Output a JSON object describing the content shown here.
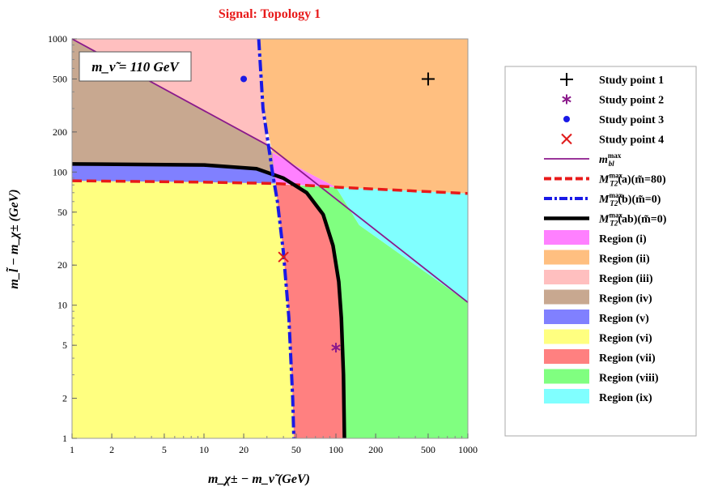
{
  "chart_data": {
    "type": "area",
    "title": "Signal: Topology 1",
    "xlabel": "m_χ± − m_ν̃ (GeV)",
    "ylabel": "m_l̃ − m_χ± (GeV)",
    "xscale": "log",
    "yscale": "log",
    "xlim": [
      1,
      1000
    ],
    "ylim": [
      1,
      1000
    ],
    "x_ticks": [
      1,
      2,
      5,
      10,
      20,
      50,
      100,
      200,
      500,
      1000
    ],
    "y_ticks": [
      1,
      2,
      5,
      10,
      20,
      50,
      100,
      200,
      500,
      1000
    ],
    "annotation": "m_ν̃ = 110 GeV",
    "grid": false,
    "legend_position": "right, outside plot",
    "curves": {
      "mbl_max": [
        [
          1,
          1000
        ],
        [
          30,
          160
        ],
        [
          1000,
          10.5
        ]
      ],
      "MT2a": [
        [
          1,
          86
        ],
        [
          10,
          84
        ],
        [
          35,
          82
        ],
        [
          100,
          77
        ],
        [
          300,
          73
        ],
        [
          1000,
          69
        ]
      ],
      "MT2b": [
        [
          26,
          1000
        ],
        [
          28,
          300
        ],
        [
          33,
          100
        ],
        [
          36,
          60
        ],
        [
          40,
          25
        ],
        [
          44,
          8
        ],
        [
          47,
          2
        ],
        [
          48,
          1
        ]
      ],
      "MT2ab": [
        [
          1,
          115
        ],
        [
          10,
          113
        ],
        [
          25,
          106
        ],
        [
          40,
          90
        ],
        [
          60,
          70
        ],
        [
          80,
          48
        ],
        [
          95,
          28
        ],
        [
          105,
          15
        ],
        [
          110,
          8
        ],
        [
          114,
          3
        ],
        [
          116,
          1
        ]
      ]
    },
    "study_points": [
      {
        "name": "Study point 1",
        "x": 500,
        "y": 500,
        "marker": "plus",
        "color": "#000000"
      },
      {
        "name": "Study point 2",
        "x": 100,
        "y": 4.8,
        "marker": "asterisk",
        "color": "#8B1A8B"
      },
      {
        "name": "Study point 3",
        "x": 20,
        "y": 500,
        "marker": "dot",
        "color": "#1A1AE6"
      },
      {
        "name": "Study point 4",
        "x": 40,
        "y": 23,
        "marker": "cross",
        "color": "#E01A1A"
      }
    ],
    "regions": [
      {
        "name": "Region (i)",
        "color": "#FF80FF"
      },
      {
        "name": "Region (ii)",
        "color": "#FFBF80"
      },
      {
        "name": "Region (iii)",
        "color": "#FFBFBF"
      },
      {
        "name": "Region (iv)",
        "color": "#C8A890"
      },
      {
        "name": "Region (v)",
        "color": "#8080FF"
      },
      {
        "name": "Region (vi)",
        "color": "#FFFF80"
      },
      {
        "name": "Region (vii)",
        "color": "#FF8080"
      },
      {
        "name": "Region (viii)",
        "color": "#80FF80"
      },
      {
        "name": "Region (ix)",
        "color": "#80FFFF"
      }
    ],
    "legend": {
      "study_points": [
        "Study point 1",
        "Study point 2",
        "Study point 3",
        "Study point 4"
      ],
      "lines": [
        {
          "label_main": "m",
          "label_sub": "bl",
          "label_sup": "max",
          "label_rest": "",
          "color": "#8B1A8B",
          "style": "solid"
        },
        {
          "label_main": "M",
          "label_sub": "T2",
          "label_sup": "max",
          "label_rest": "(a)(m̃=80)",
          "color": "#E81A1A",
          "style": "dashed"
        },
        {
          "label_main": "M",
          "label_sub": "T2",
          "label_sup": "max",
          "label_rest": "(b)(m̃=0)",
          "color": "#1A1AE6",
          "style": "dashdot"
        },
        {
          "label_main": "M",
          "label_sub": "T2",
          "label_sup": "max",
          "label_rest": "(ab)(m̃=0)",
          "color": "#000000",
          "style": "solid-thick"
        }
      ]
    }
  }
}
